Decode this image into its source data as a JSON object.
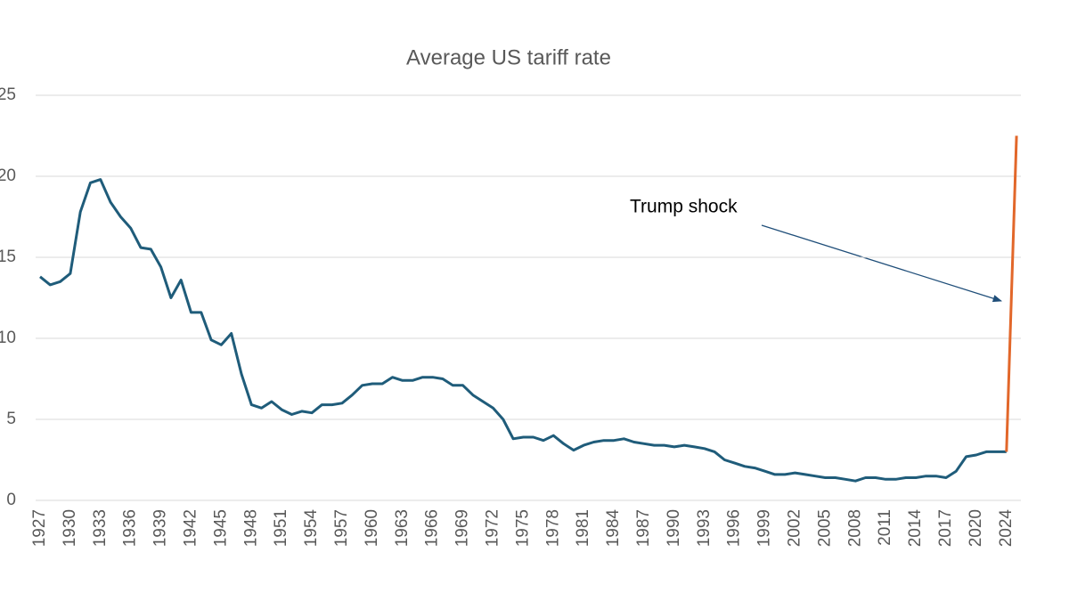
{
  "chart_data": {
    "type": "line",
    "title": "Average US tariff rate",
    "annotation": "Trump shock",
    "categories": [
      "1927",
      null,
      null,
      "1930",
      null,
      null,
      "1933",
      null,
      null,
      "1936",
      null,
      null,
      "1939",
      null,
      null,
      "1942",
      null,
      null,
      "1945",
      null,
      null,
      "1948",
      null,
      null,
      "1951",
      null,
      null,
      "1954",
      null,
      null,
      "1957",
      null,
      null,
      "1960",
      null,
      null,
      "1963",
      null,
      null,
      "1966",
      null,
      null,
      "1969",
      null,
      null,
      "1972",
      null,
      null,
      "1975",
      null,
      null,
      "1978",
      null,
      null,
      "1981",
      null,
      null,
      "1984",
      null,
      null,
      "1987",
      null,
      null,
      "1990",
      null,
      null,
      "1993",
      null,
      null,
      "1996",
      null,
      null,
      "1999",
      null,
      null,
      "2002",
      null,
      null,
      "2005",
      null,
      null,
      "2008",
      null,
      null,
      "2011",
      null,
      null,
      "2014",
      null,
      null,
      "2017",
      null,
      null,
      "2020",
      null,
      null,
      "2024",
      null
    ],
    "series": [
      {
        "color": "#1f5c7a",
        "values": [
          13.8,
          13.3,
          13.5,
          14.0,
          17.8,
          19.6,
          19.8,
          18.4,
          17.5,
          16.8,
          15.6,
          15.5,
          14.4,
          12.5,
          13.6,
          11.6,
          11.6,
          9.9,
          9.6,
          10.3,
          7.8,
          5.9,
          5.7,
          6.1,
          5.6,
          5.3,
          5.5,
          5.4,
          5.9,
          5.9,
          6.0,
          6.5,
          7.1,
          7.2,
          7.2,
          7.6,
          7.4,
          7.4,
          7.6,
          7.6,
          7.5,
          7.1,
          7.1,
          6.5,
          6.1,
          5.7,
          5.0,
          3.8,
          3.9,
          3.9,
          3.7,
          4.0,
          3.5,
          3.1,
          3.4,
          3.6,
          3.7,
          3.7,
          3.8,
          3.6,
          3.5,
          3.4,
          3.4,
          3.3,
          3.4,
          3.3,
          3.2,
          3.0,
          2.5,
          2.3,
          2.1,
          2.0,
          1.8,
          1.6,
          1.6,
          1.7,
          1.6,
          1.5,
          1.4,
          1.4,
          1.3,
          1.2,
          1.4,
          1.4,
          1.3,
          1.3,
          1.4,
          1.4,
          1.5,
          1.5,
          1.4,
          1.8,
          2.7,
          2.8,
          3.0,
          3.0,
          3.0,
          null
        ]
      },
      {
        "color": "#e2672a",
        "values": [
          null,
          null,
          null,
          null,
          null,
          null,
          null,
          null,
          null,
          null,
          null,
          null,
          null,
          null,
          null,
          null,
          null,
          null,
          null,
          null,
          null,
          null,
          null,
          null,
          null,
          null,
          null,
          null,
          null,
          null,
          null,
          null,
          null,
          null,
          null,
          null,
          null,
          null,
          null,
          null,
          null,
          null,
          null,
          null,
          null,
          null,
          null,
          null,
          null,
          null,
          null,
          null,
          null,
          null,
          null,
          null,
          null,
          null,
          null,
          null,
          null,
          null,
          null,
          null,
          null,
          null,
          null,
          null,
          null,
          null,
          null,
          null,
          null,
          null,
          null,
          null,
          null,
          null,
          null,
          null,
          null,
          null,
          null,
          null,
          null,
          null,
          null,
          null,
          null,
          null,
          null,
          null,
          null,
          null,
          null,
          null,
          3.0,
          22.5
        ]
      }
    ],
    "ylim": [
      0,
      25
    ],
    "yticks": [
      0,
      5,
      10,
      15,
      20,
      25
    ],
    "grid": true
  }
}
